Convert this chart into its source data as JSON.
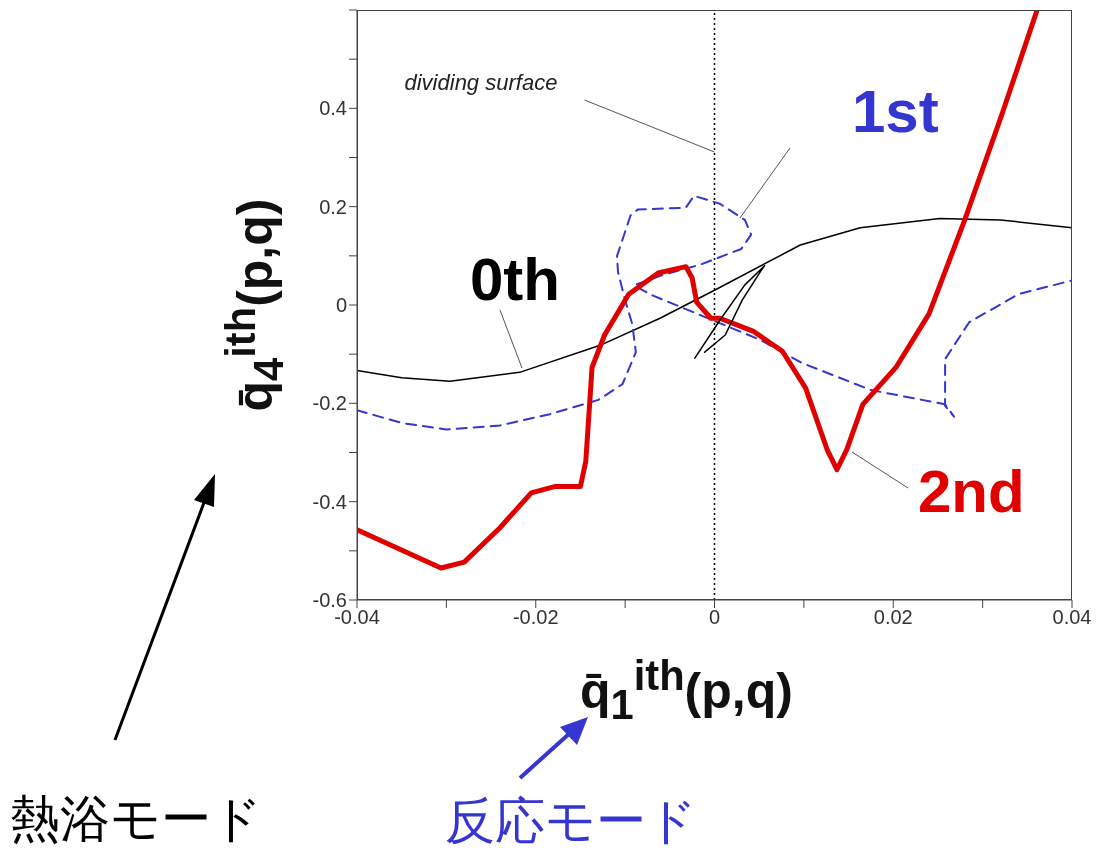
{
  "chart_data": {
    "type": "line",
    "xlabel": "q̄$_{1}$$^{ith}$(p,q)",
    "ylabel": "q̄$_{4}$$^{ith}$(p,q)",
    "xlim": [
      -0.04,
      0.04
    ],
    "xticks": [
      -0.04,
      {
        "value": -0.03,
        "label": null
      },
      -0.02,
      {
        "value": -0.01,
        "label": null
      },
      0,
      {
        "value": 0.01,
        "label": null
      },
      0.02,
      {
        "value": 0.03,
        "label": null
      },
      0.04
    ],
    "ylim": [
      -0.6,
      0.6
    ],
    "yticks": [
      -0.6,
      {
        "value": -0.5,
        "label": null
      },
      -0.4,
      {
        "value": -0.3,
        "label": null
      },
      -0.2,
      {
        "value": -0.1,
        "label": null
      },
      0.0,
      {
        "value": 0.1,
        "label": null
      },
      0.2,
      {
        "value": 0.3,
        "label": null
      },
      0.4,
      {
        "value": 0.5,
        "label": null
      },
      {
        "value": 0.6,
        "label": null
      }
    ],
    "grid": false,
    "legend": false,
    "marker": "none",
    "ref_lines": [
      {
        "axis": "x",
        "value": 0,
        "label": "dividing surface",
        "color": "#000000",
        "line_style": "dotted"
      }
    ],
    "annotations": [
      "熱浴モード",
      "反応モード"
    ],
    "series": [
      {
        "name": "0th",
        "color": "#000000",
        "line_style": "solid",
        "x": [
          -0.04,
          -0.035,
          -0.0296,
          -0.0218,
          -0.0128,
          -0.0061,
          0.0,
          0.0096,
          0.0163,
          0.0252,
          0.032,
          0.04
        ],
        "values": [
          -0.133,
          -0.148,
          -0.155,
          -0.137,
          -0.082,
          -0.027,
          0.03,
          0.122,
          0.157,
          0.176,
          0.173,
          0.157
        ]
      },
      {
        "name": "1st",
        "color": "#3535d0",
        "line_style": "dashed",
        "x": [
          -0.04,
          -0.035,
          -0.03,
          -0.024,
          -0.0184,
          -0.013,
          -0.0103,
          -0.0088,
          -0.0092,
          -0.01,
          -0.0108,
          -0.0109,
          -0.0094,
          -0.0086,
          -0.0032,
          -0.0023,
          0.0006,
          0.0034,
          0.0041,
          0.003,
          -0.0016,
          -0.006,
          -0.009,
          -0.007,
          -0.003,
          0.001,
          0.005,
          0.0098,
          0.0175,
          0.0258,
          0.0268,
          0.0258,
          0.0258,
          0.0285,
          0.034,
          0.04
        ],
        "values": [
          -0.214,
          -0.24,
          -0.253,
          -0.245,
          -0.222,
          -0.193,
          -0.161,
          -0.096,
          -0.039,
          0.01,
          0.067,
          0.1,
          0.182,
          0.194,
          0.198,
          0.222,
          0.206,
          0.173,
          0.143,
          0.114,
          0.082,
          0.06,
          0.04,
          0.02,
          -0.01,
          -0.04,
          -0.07,
          -0.118,
          -0.173,
          -0.202,
          -0.227,
          -0.205,
          -0.11,
          -0.035,
          0.022,
          0.05
        ]
      },
      {
        "name": "2nd",
        "color": "#e00000",
        "line_style": "solid",
        "x": [
          -0.04,
          -0.0306,
          -0.028,
          -0.024,
          -0.0205,
          -0.0178,
          -0.015,
          -0.0144,
          -0.0137,
          -0.0123,
          -0.0096,
          -0.0063,
          -0.0032,
          -0.0025,
          -0.002,
          -0.0004,
          0.0006,
          0.0043,
          0.0076,
          0.0102,
          0.0126,
          0.0137,
          0.0148,
          0.0166,
          0.0203,
          0.024,
          0.028,
          0.0322,
          0.0361
        ],
        "values": [
          -0.457,
          -0.535,
          -0.523,
          -0.453,
          -0.382,
          -0.369,
          -0.369,
          -0.318,
          -0.127,
          -0.061,
          0.022,
          0.065,
          0.078,
          0.055,
          0.006,
          -0.027,
          -0.027,
          -0.053,
          -0.094,
          -0.169,
          -0.294,
          -0.335,
          -0.294,
          -0.202,
          -0.127,
          -0.018,
          0.173,
          0.39,
          0.6
        ]
      },
      {
        "color": "#000000",
        "line_style": "solid",
        "x": [
          -0.0022,
          0.0006,
          0.0034,
          0.0056,
          0.0051,
          0.0031,
          0.0012,
          -0.0011
        ],
        "values": [
          -0.108,
          -0.031,
          0.041,
          0.08,
          0.067,
          0.01,
          -0.061,
          -0.096
        ]
      }
    ]
  }
}
